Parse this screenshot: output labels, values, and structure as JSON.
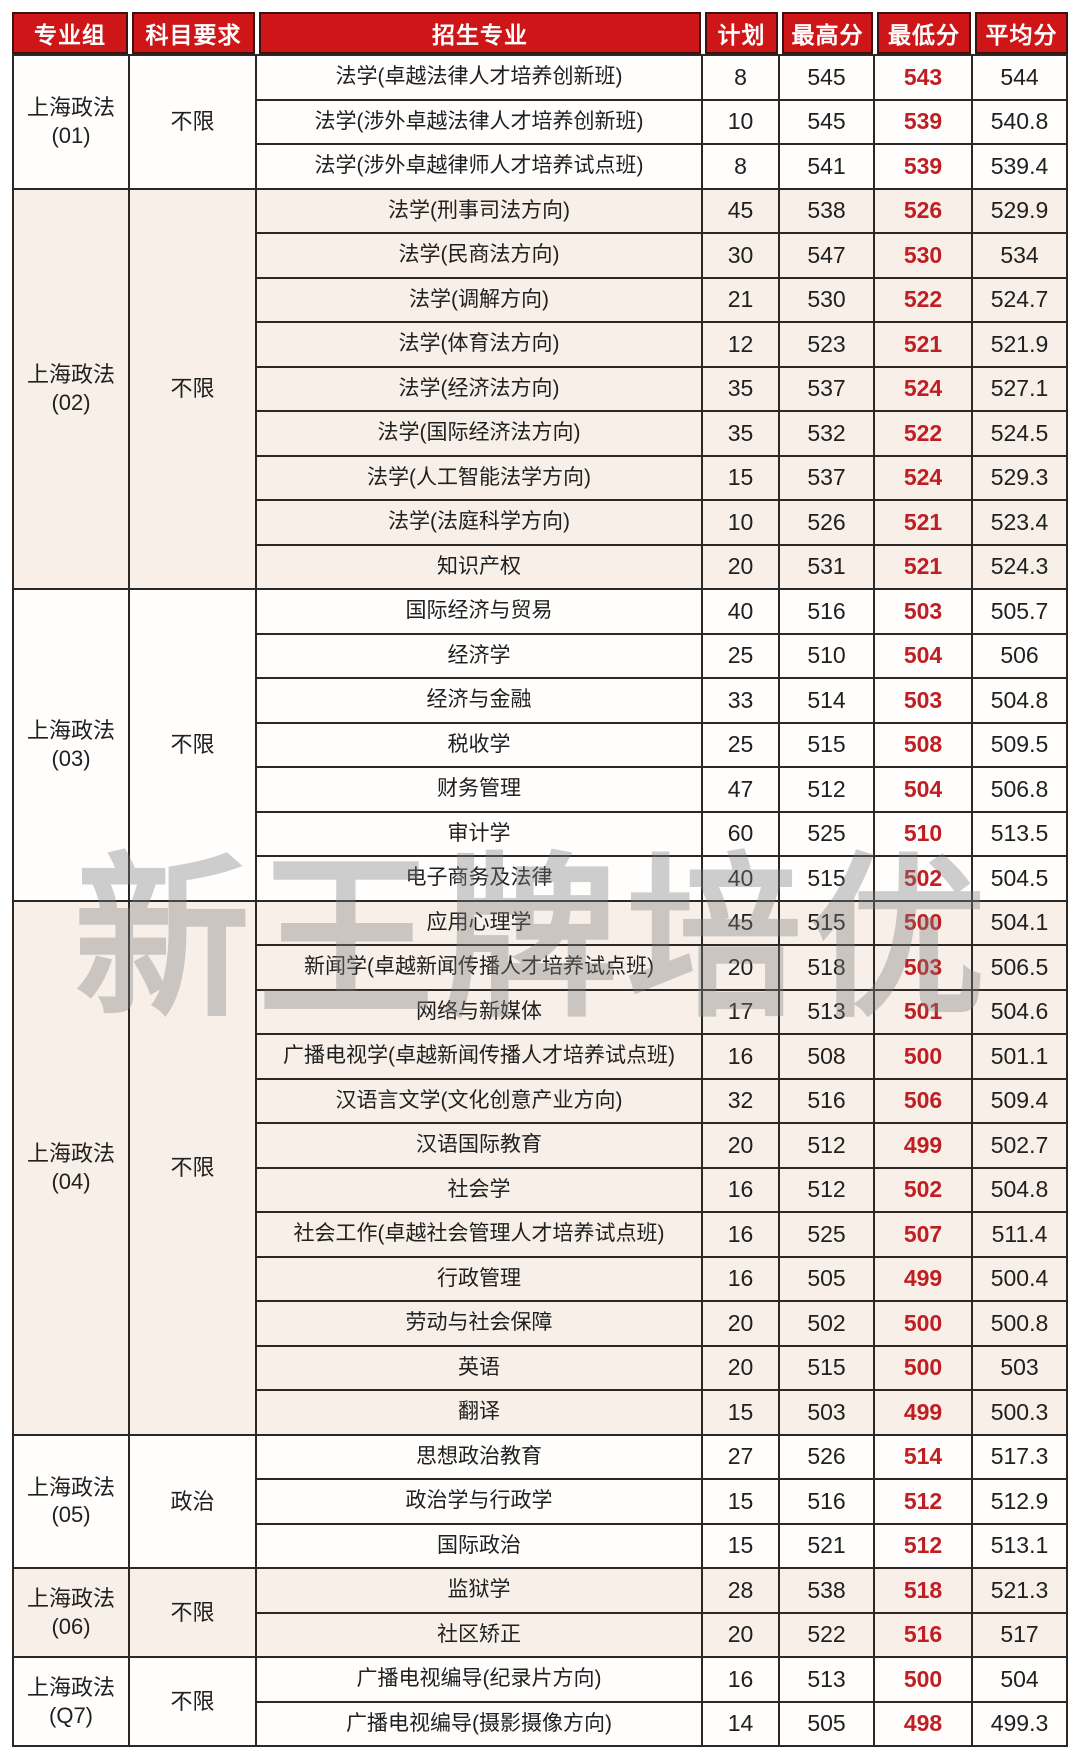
{
  "table": {
    "columns": [
      {
        "key": "group",
        "label": "专业组"
      },
      {
        "key": "subject-requirement",
        "label": "科目要求"
      },
      {
        "key": "major",
        "label": "招生专业"
      },
      {
        "key": "plan",
        "label": "计划"
      },
      {
        "key": "max-score",
        "label": "最高分"
      },
      {
        "key": "min-score",
        "label": "最低分"
      },
      {
        "key": "avg-score",
        "label": "平均分"
      }
    ],
    "groups": [
      {
        "group_line1": "上海政法",
        "group_line2": "(01)",
        "subject_req": "不限",
        "rows": [
          [
            "法学(卓越法律人才培养创新班)",
            "8",
            "545",
            "543",
            "544"
          ],
          [
            "法学(涉外卓越法律人才培养创新班)",
            "10",
            "545",
            "539",
            "540.8"
          ],
          [
            "法学(涉外卓越律师人才培养试点班)",
            "8",
            "541",
            "539",
            "539.4"
          ]
        ]
      },
      {
        "group_line1": "上海政法",
        "group_line2": "(02)",
        "subject_req": "不限",
        "rows": [
          [
            "法学(刑事司法方向)",
            "45",
            "538",
            "526",
            "529.9"
          ],
          [
            "法学(民商法方向)",
            "30",
            "547",
            "530",
            "534"
          ],
          [
            "法学(调解方向)",
            "21",
            "530",
            "522",
            "524.7"
          ],
          [
            "法学(体育法方向)",
            "12",
            "523",
            "521",
            "521.9"
          ],
          [
            "法学(经济法方向)",
            "35",
            "537",
            "524",
            "527.1"
          ],
          [
            "法学(国际经济法方向)",
            "35",
            "532",
            "522",
            "524.5"
          ],
          [
            "法学(人工智能法学方向)",
            "15",
            "537",
            "524",
            "529.3"
          ],
          [
            "法学(法庭科学方向)",
            "10",
            "526",
            "521",
            "523.4"
          ],
          [
            "知识产权",
            "20",
            "531",
            "521",
            "524.3"
          ]
        ]
      },
      {
        "group_line1": "上海政法",
        "group_line2": "(03)",
        "subject_req": "不限",
        "rows": [
          [
            "国际经济与贸易",
            "40",
            "516",
            "503",
            "505.7"
          ],
          [
            "经济学",
            "25",
            "510",
            "504",
            "506"
          ],
          [
            "经济与金融",
            "33",
            "514",
            "503",
            "504.8"
          ],
          [
            "税收学",
            "25",
            "515",
            "508",
            "509.5"
          ],
          [
            "财务管理",
            "47",
            "512",
            "504",
            "506.8"
          ],
          [
            "审计学",
            "60",
            "525",
            "510",
            "513.5"
          ],
          [
            "电子商务及法律",
            "40",
            "515",
            "502",
            "504.5"
          ]
        ]
      },
      {
        "group_line1": "上海政法",
        "group_line2": "(04)",
        "subject_req": "不限",
        "rows": [
          [
            "应用心理学",
            "45",
            "515",
            "500",
            "504.1"
          ],
          [
            "新闻学(卓越新闻传播人才培养试点班)",
            "20",
            "518",
            "503",
            "506.5"
          ],
          [
            "网络与新媒体",
            "17",
            "513",
            "501",
            "504.6"
          ],
          [
            "广播电视学(卓越新闻传播人才培养试点班)",
            "16",
            "508",
            "500",
            "501.1"
          ],
          [
            "汉语言文学(文化创意产业方向)",
            "32",
            "516",
            "506",
            "509.4"
          ],
          [
            "汉语国际教育",
            "20",
            "512",
            "499",
            "502.7"
          ],
          [
            "社会学",
            "16",
            "512",
            "502",
            "504.8"
          ],
          [
            "社会工作(卓越社会管理人才培养试点班)",
            "16",
            "525",
            "507",
            "511.4"
          ],
          [
            "行政管理",
            "16",
            "505",
            "499",
            "500.4"
          ],
          [
            "劳动与社会保障",
            "20",
            "502",
            "500",
            "500.8"
          ],
          [
            "英语",
            "20",
            "515",
            "500",
            "503"
          ],
          [
            "翻译",
            "15",
            "503",
            "499",
            "500.3"
          ]
        ]
      },
      {
        "group_line1": "上海政法",
        "group_line2": "(05)",
        "subject_req": "政治",
        "rows": [
          [
            "思想政治教育",
            "27",
            "526",
            "514",
            "517.3"
          ],
          [
            "政治学与行政学",
            "15",
            "516",
            "512",
            "512.9"
          ],
          [
            "国际政治",
            "15",
            "521",
            "512",
            "513.1"
          ]
        ]
      },
      {
        "group_line1": "上海政法",
        "group_line2": "(06)",
        "subject_req": "不限",
        "rows": [
          [
            "监狱学",
            "28",
            "538",
            "518",
            "521.3"
          ],
          [
            "社区矫正",
            "20",
            "522",
            "516",
            "517"
          ]
        ]
      },
      {
        "group_line1": "上海政法",
        "group_line2": "(Q7)",
        "subject_req": "不限",
        "rows": [
          [
            "广播电视编导(纪录片方向)",
            "16",
            "513",
            "500",
            "504"
          ],
          [
            "广播电视编导(摄影摄像方向)",
            "14",
            "505",
            "498",
            "499.3"
          ]
        ]
      }
    ]
  },
  "watermark": {
    "text": "新王牌培优"
  },
  "colors": {
    "header_background": "#ce1518",
    "header_text": "#ffffff",
    "min_score_text": "#bf1e23",
    "alt_group_background": "#f8f0e8",
    "border": "#2b2826",
    "body_text": "#202020",
    "watermark_gray": "#7d7d7d"
  }
}
